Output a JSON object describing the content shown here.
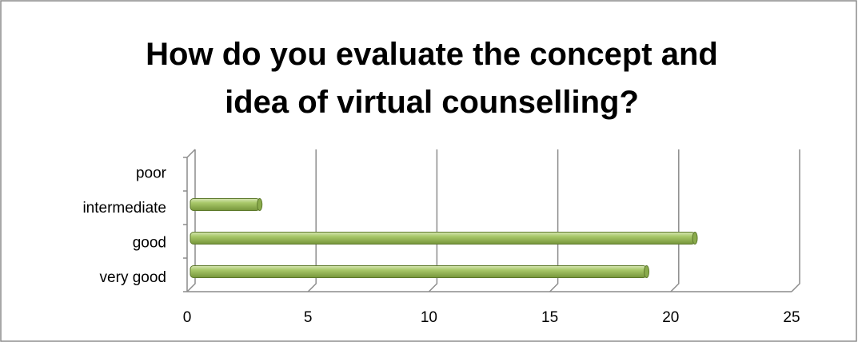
{
  "chart_data": {
    "type": "bar",
    "orientation": "horizontal",
    "title": "How do you evaluate the concept and idea of virtual counselling?",
    "categories": [
      "very good",
      "good",
      "intermediate",
      "poor"
    ],
    "values": [
      19,
      21,
      3,
      0
    ],
    "color": "#9bbb59",
    "xlim": [
      0,
      25
    ],
    "xticks": [
      0,
      5,
      10,
      15,
      20,
      25
    ],
    "grid": true
  }
}
